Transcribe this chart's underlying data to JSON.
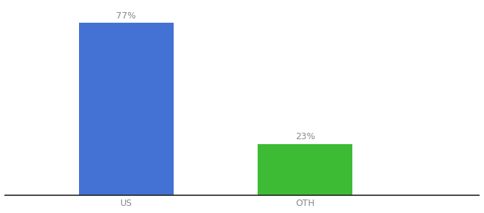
{
  "categories": [
    "US",
    "OTH"
  ],
  "values": [
    77,
    23
  ],
  "bar_colors": [
    "#4472d4",
    "#3dbb35"
  ],
  "label_color": "#888888",
  "axis_color": "#222222",
  "background_color": "#ffffff",
  "ylim": [
    0,
    85
  ],
  "bar_width": 0.18,
  "figsize": [
    6.8,
    3.0
  ],
  "dpi": 100,
  "label_fontsize": 9,
  "tick_fontsize": 9
}
